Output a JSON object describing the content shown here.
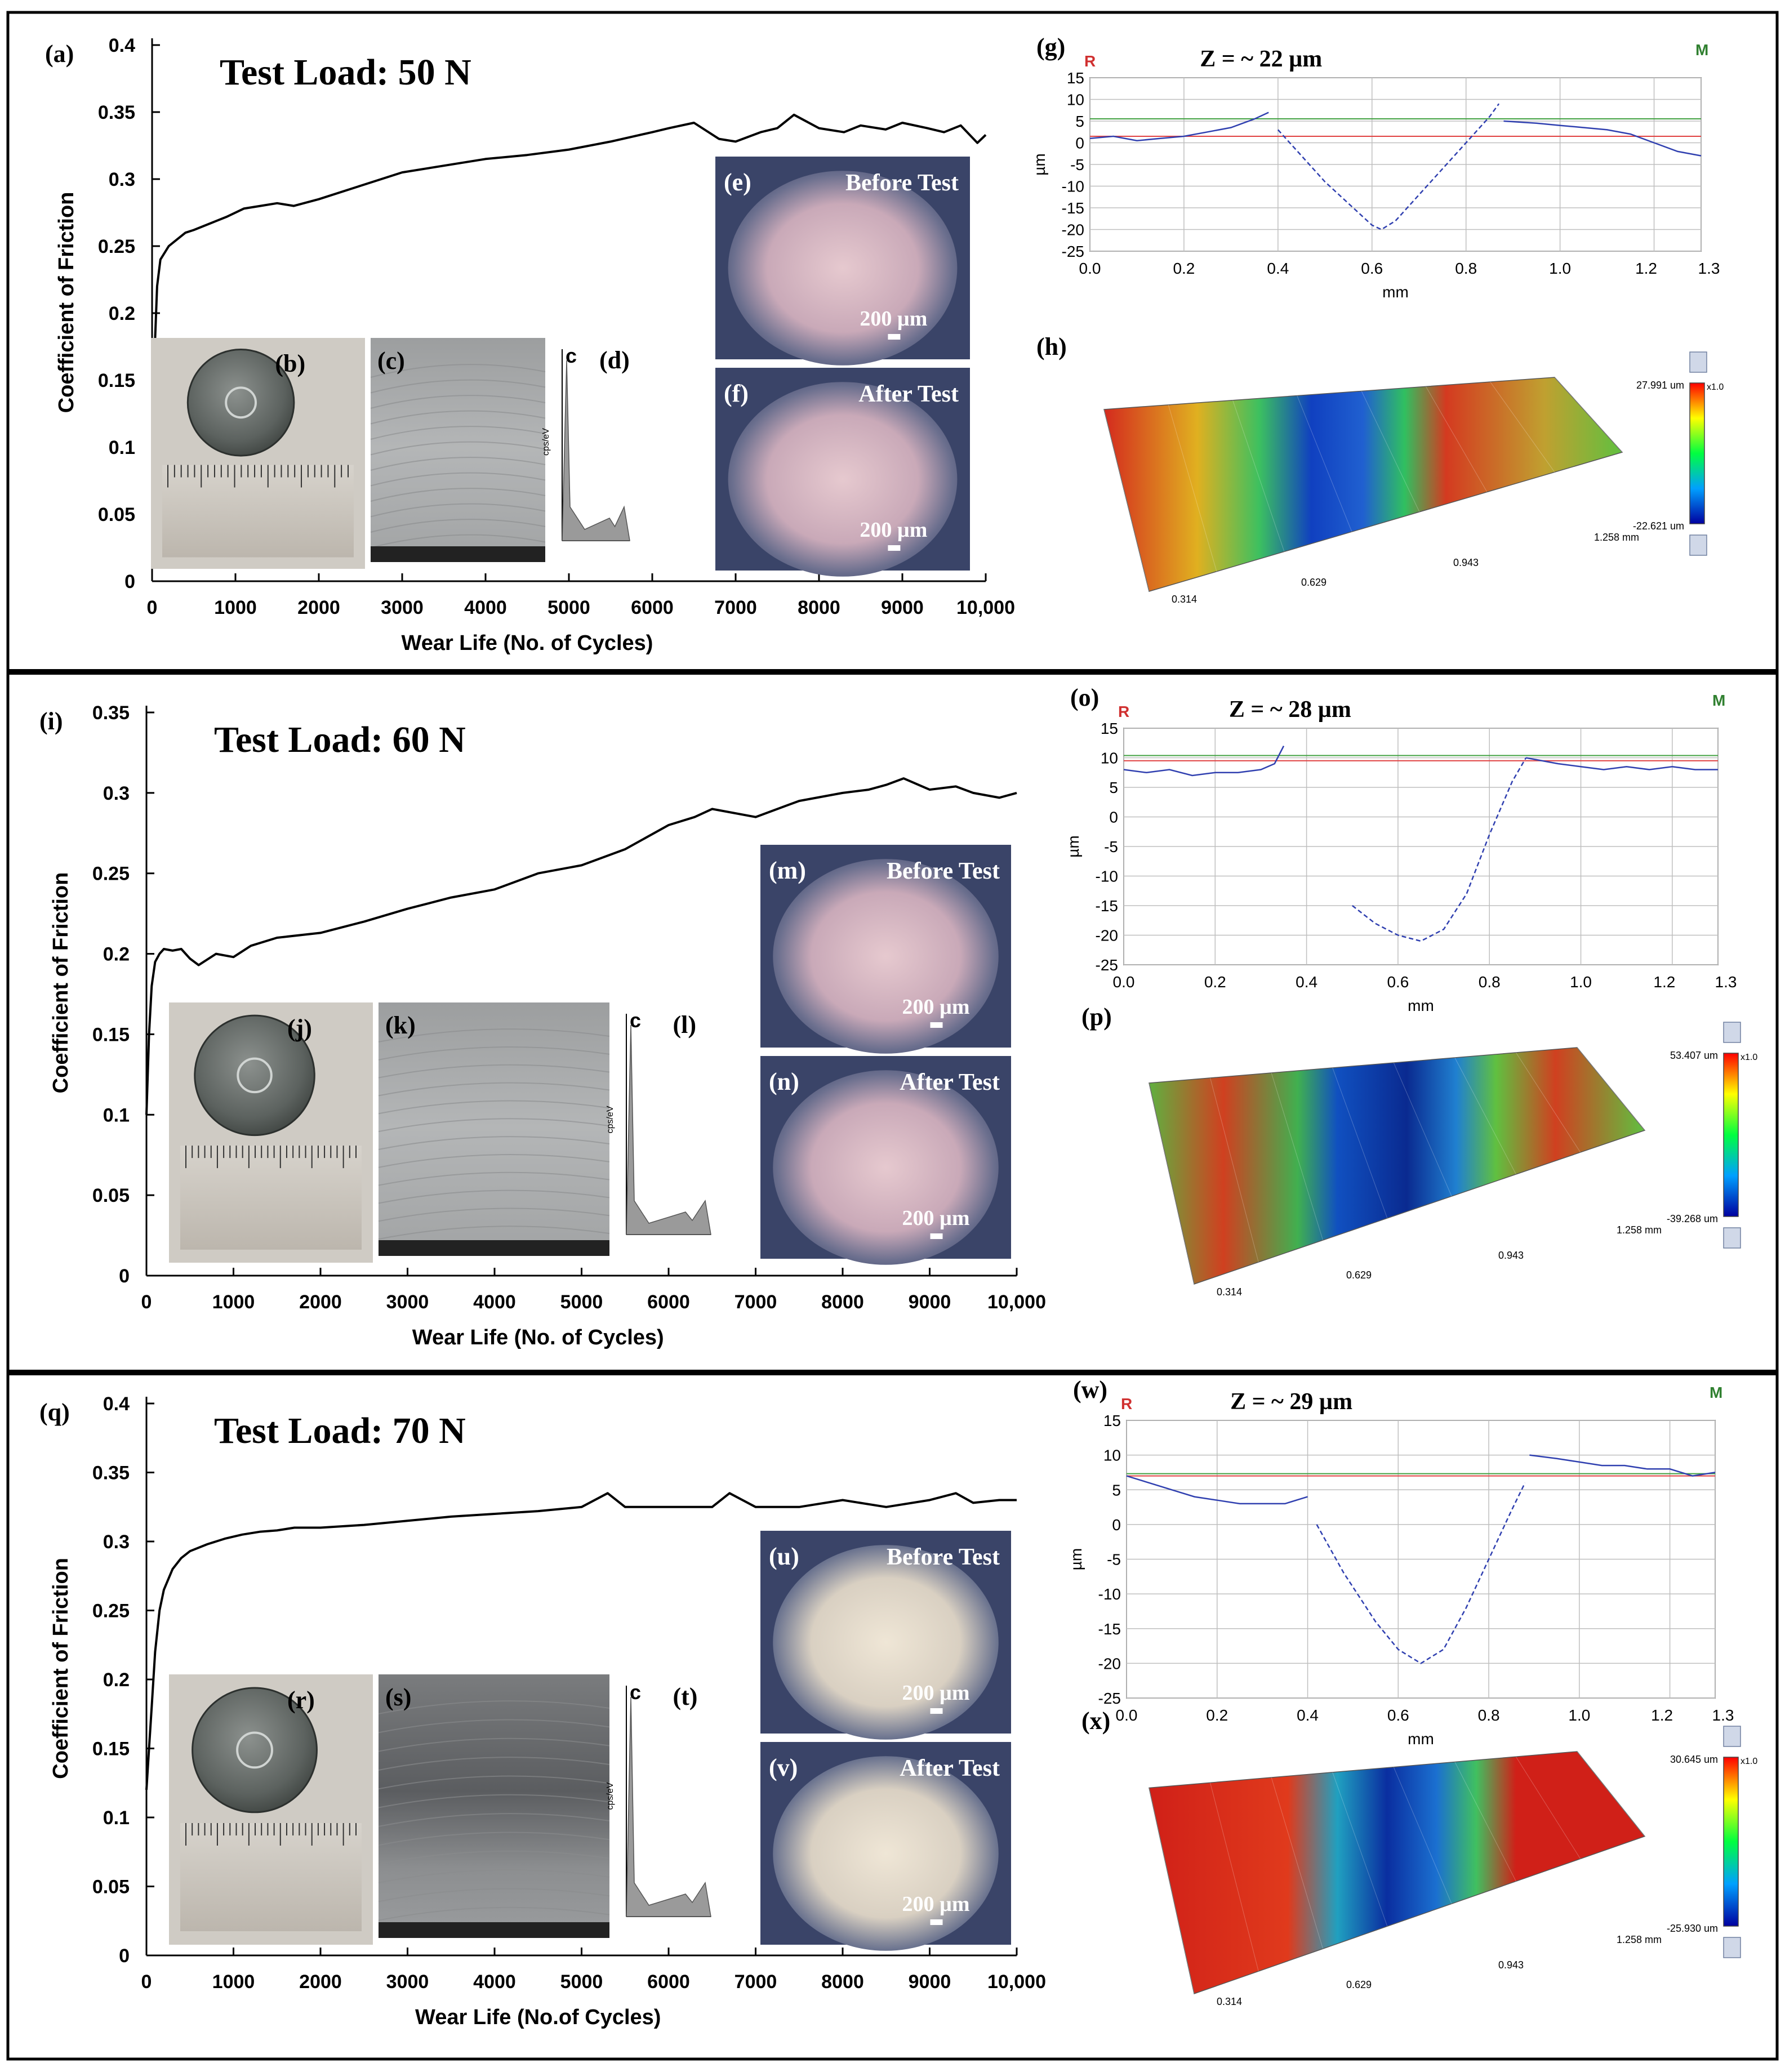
{
  "panels": [
    {
      "load_label": "Test Load: 50 N",
      "cof_label": "(a)",
      "disk_label": "(b)",
      "sem_label": "(c)",
      "eds_label": "(d)",
      "before_label": "(e)",
      "after_label": "(f)",
      "profile_label": "(g)",
      "surface_label": "(h)",
      "depth_label": "Z = ~ 22 µm",
      "surface_max": "27.991 um",
      "surface_min": "-22.621 um"
    },
    {
      "load_label": "Test Load: 60 N",
      "cof_label": "(i)",
      "disk_label": "(j)",
      "sem_label": "(k)",
      "eds_label": "(l)",
      "before_label": "(m)",
      "after_label": "(n)",
      "profile_label": "(o)",
      "surface_label": "(p)",
      "depth_label": "Z = ~ 28 µm",
      "surface_max": "53.407 um",
      "surface_min": "-39.268 um"
    },
    {
      "load_label": "Test Load: 70 N",
      "cof_label": "(q)",
      "disk_label": "(r)",
      "sem_label": "(s)",
      "eds_label": "(t)",
      "before_label": "(u)",
      "after_label": "(v)",
      "profile_label": "(w)",
      "surface_label": "(x)",
      "depth_label": "Z = ~ 29 µm",
      "surface_max": "30.645 um",
      "surface_min": "-25.930 um"
    }
  ],
  "common": {
    "before_text": "Before Test",
    "after_text": "After Test",
    "scale_text": "200 µm",
    "eds_c": "c",
    "eds_yaxis": "cps/eV",
    "profile_R": "R",
    "profile_M": "M",
    "profile_unit_y": "µm",
    "profile_unit_x": "mm",
    "surface_x1": "0.314",
    "surface_x2": "0.629",
    "surface_x3": "0.943",
    "surface_x4": "1.258 mm",
    "surface_zoom": "x1.0"
  },
  "chart_data": [
    {
      "type": "line",
      "title": "Test Load: 50 N",
      "xlabel": "Wear Life (No. of Cycles)",
      "ylabel": "Coefficient of Friction",
      "xlim": [
        0,
        10000
      ],
      "ylim": [
        0,
        0.4
      ],
      "xticks": [
        0,
        1000,
        2000,
        3000,
        4000,
        5000,
        6000,
        7000,
        8000,
        9000,
        10000
      ],
      "xtick_labels": [
        "0",
        "1000",
        "2000",
        "3000",
        "4000",
        "5000",
        "6000",
        "7000",
        "8000",
        "9000",
        "10,000"
      ],
      "yticks": [
        0,
        0.05,
        0.1,
        0.15,
        0.2,
        0.25,
        0.3,
        0.35,
        0.4
      ],
      "ytick_labels": [
        "0",
        "0.05",
        "0.1",
        "0.15",
        "0.2",
        "0.25",
        "0.3",
        "0.35",
        "0.4"
      ],
      "x": [
        0,
        30,
        60,
        100,
        150,
        200,
        300,
        400,
        500,
        700,
        900,
        1100,
        1300,
        1500,
        1700,
        2000,
        2500,
        3000,
        3500,
        4000,
        4500,
        5000,
        5500,
        6000,
        6200,
        6500,
        6800,
        7000,
        7300,
        7500,
        7700,
        8000,
        8300,
        8500,
        8800,
        9000,
        9300,
        9500,
        9700,
        9900,
        10000
      ],
      "y": [
        0.1,
        0.17,
        0.22,
        0.24,
        0.245,
        0.25,
        0.255,
        0.26,
        0.262,
        0.267,
        0.272,
        0.278,
        0.28,
        0.282,
        0.28,
        0.285,
        0.295,
        0.305,
        0.31,
        0.315,
        0.318,
        0.322,
        0.328,
        0.335,
        0.338,
        0.342,
        0.33,
        0.328,
        0.335,
        0.338,
        0.348,
        0.338,
        0.335,
        0.34,
        0.337,
        0.342,
        0.338,
        0.335,
        0.34,
        0.327,
        0.333
      ]
    },
    {
      "type": "line",
      "title": "Test Load: 60 N",
      "xlabel": "Wear Life (No. of Cycles)",
      "ylabel": "Coefficient of Friction",
      "xlim": [
        0,
        10000
      ],
      "ylim": [
        0,
        0.35
      ],
      "xticks": [
        0,
        1000,
        2000,
        3000,
        4000,
        5000,
        6000,
        7000,
        8000,
        9000,
        10000
      ],
      "xtick_labels": [
        "0",
        "1000",
        "2000",
        "3000",
        "4000",
        "5000",
        "6000",
        "7000",
        "8000",
        "9000",
        "10,000"
      ],
      "yticks": [
        0,
        0.05,
        0.1,
        0.15,
        0.2,
        0.25,
        0.3,
        0.35
      ],
      "ytick_labels": [
        "0",
        "0.05",
        "0.1",
        "0.15",
        "0.2",
        "0.25",
        "0.3",
        "0.35"
      ],
      "x": [
        0,
        30,
        60,
        100,
        150,
        200,
        300,
        400,
        500,
        600,
        800,
        1000,
        1200,
        1500,
        2000,
        2500,
        3000,
        3500,
        4000,
        4500,
        5000,
        5500,
        6000,
        6300,
        6500,
        7000,
        7500,
        8000,
        8300,
        8500,
        8700,
        9000,
        9300,
        9500,
        9800,
        10000
      ],
      "y": [
        0.1,
        0.15,
        0.18,
        0.195,
        0.2,
        0.203,
        0.202,
        0.203,
        0.197,
        0.193,
        0.2,
        0.198,
        0.205,
        0.21,
        0.213,
        0.22,
        0.228,
        0.235,
        0.24,
        0.25,
        0.255,
        0.265,
        0.28,
        0.285,
        0.29,
        0.285,
        0.295,
        0.3,
        0.302,
        0.305,
        0.309,
        0.302,
        0.304,
        0.3,
        0.297,
        0.3
      ]
    },
    {
      "type": "line",
      "title": "Test Load: 70 N",
      "xlabel": "Wear Life (No.of Cycles)",
      "ylabel": "Coefficient of Friction",
      "xlim": [
        0,
        10000
      ],
      "ylim": [
        0,
        0.4
      ],
      "xticks": [
        0,
        1000,
        2000,
        3000,
        4000,
        5000,
        6000,
        7000,
        8000,
        9000,
        10000
      ],
      "xtick_labels": [
        "0",
        "1000",
        "2000",
        "3000",
        "4000",
        "5000",
        "6000",
        "7000",
        "8000",
        "9000",
        "10,000"
      ],
      "yticks": [
        0,
        0.05,
        0.1,
        0.15,
        0.2,
        0.25,
        0.3,
        0.35,
        0.4
      ],
      "ytick_labels": [
        "0",
        "0.05",
        "0.1",
        "0.15",
        "0.2",
        "0.25",
        "0.3",
        "0.35",
        "0.4"
      ],
      "x": [
        0,
        30,
        60,
        100,
        150,
        200,
        300,
        400,
        500,
        700,
        900,
        1100,
        1300,
        1500,
        1700,
        2000,
        2500,
        3000,
        3500,
        4000,
        4500,
        5000,
        5300,
        5500,
        6000,
        6500,
        6700,
        7000,
        7500,
        8000,
        8500,
        9000,
        9300,
        9500,
        9800,
        10000
      ],
      "y": [
        0.12,
        0.15,
        0.18,
        0.22,
        0.25,
        0.265,
        0.28,
        0.288,
        0.293,
        0.298,
        0.302,
        0.305,
        0.307,
        0.308,
        0.31,
        0.31,
        0.312,
        0.315,
        0.318,
        0.32,
        0.322,
        0.325,
        0.335,
        0.325,
        0.325,
        0.325,
        0.335,
        0.325,
        0.325,
        0.33,
        0.325,
        0.33,
        0.335,
        0.328,
        0.33,
        0.33
      ]
    },
    {
      "type": "line",
      "title": "Z = ~ 22 µm",
      "xlabel": "mm",
      "ylabel": "µm",
      "xlim": [
        0,
        1.3
      ],
      "ylim": [
        -25,
        15
      ],
      "xticks": [
        0,
        0.2,
        0.4,
        0.6,
        0.8,
        1.0,
        1.2,
        1.3
      ],
      "xtick_labels": [
        "0.0",
        "0.2",
        "0.4",
        "0.6",
        "0.8",
        "1.0",
        "1.2",
        "1.3"
      ],
      "yticks": [
        -25,
        -20,
        -15,
        -10,
        -5,
        0,
        5,
        10,
        15
      ],
      "series": [
        {
          "name": "left",
          "x": [
            0,
            0.05,
            0.1,
            0.15,
            0.2,
            0.25,
            0.3,
            0.35,
            0.38
          ],
          "y": [
            1,
            1.5,
            0.5,
            1,
            1.5,
            2.5,
            3.5,
            5.5,
            7
          ]
        },
        {
          "name": "track",
          "x": [
            0.4,
            0.45,
            0.5,
            0.55,
            0.6,
            0.62,
            0.65,
            0.7,
            0.75,
            0.8,
            0.85,
            0.87
          ],
          "y": [
            3,
            -3,
            -9,
            -14,
            -19,
            -20,
            -18,
            -12,
            -6,
            0,
            6,
            9
          ]
        },
        {
          "name": "right",
          "x": [
            0.88,
            0.95,
            1.0,
            1.05,
            1.1,
            1.15,
            1.2,
            1.25,
            1.3
          ],
          "y": [
            5,
            4.5,
            4,
            3.5,
            3,
            2,
            0,
            -2,
            -3
          ]
        }
      ],
      "ref_lines": [
        1.5,
        5
      ]
    },
    {
      "type": "line",
      "title": "Z = ~ 28 µm",
      "xlabel": "mm",
      "ylabel": "µm",
      "xlim": [
        0,
        1.3
      ],
      "ylim": [
        -25,
        15
      ],
      "xticks": [
        0,
        0.2,
        0.4,
        0.6,
        0.8,
        1.0,
        1.2,
        1.3
      ],
      "xtick_labels": [
        "0.0",
        "0.2",
        "0.4",
        "0.6",
        "0.8",
        "1.0",
        "1.2",
        "1.3"
      ],
      "yticks": [
        -25,
        -20,
        -15,
        -10,
        -5,
        0,
        5,
        10,
        15
      ],
      "series": [
        {
          "name": "left",
          "x": [
            0,
            0.05,
            0.1,
            0.15,
            0.2,
            0.25,
            0.3,
            0.33,
            0.35
          ],
          "y": [
            8,
            7.5,
            8,
            7,
            7.5,
            7.5,
            8,
            9,
            12
          ]
        },
        {
          "name": "track",
          "x": [
            0.5,
            0.55,
            0.6,
            0.65,
            0.7,
            0.75,
            0.8,
            0.85,
            0.88
          ],
          "y": [
            -15,
            -18,
            -20,
            -21,
            -19,
            -13,
            -3,
            6,
            10
          ]
        },
        {
          "name": "right",
          "x": [
            0.88,
            0.95,
            1.0,
            1.05,
            1.1,
            1.15,
            1.2,
            1.25,
            1.3
          ],
          "y": [
            10,
            9,
            8.5,
            8,
            8.5,
            8,
            8.5,
            8,
            8
          ]
        }
      ],
      "ref_lines": [
        9.5,
        10
      ]
    },
    {
      "type": "line",
      "title": "Z = ~ 29 µm",
      "xlabel": "mm",
      "ylabel": "µm",
      "xlim": [
        0,
        1.3
      ],
      "ylim": [
        -25,
        15
      ],
      "xticks": [
        0,
        0.2,
        0.4,
        0.6,
        0.8,
        1.0,
        1.2,
        1.3
      ],
      "xtick_labels": [
        "0.0",
        "0.2",
        "0.4",
        "0.6",
        "0.8",
        "1.0",
        "1.2",
        "1.3"
      ],
      "yticks": [
        -25,
        -20,
        -15,
        -10,
        -5,
        0,
        5,
        10,
        15
      ],
      "series": [
        {
          "name": "left",
          "x": [
            0,
            0.05,
            0.1,
            0.15,
            0.2,
            0.25,
            0.3,
            0.35,
            0.4
          ],
          "y": [
            7,
            6,
            5,
            4,
            3.5,
            3,
            3,
            3,
            4
          ]
        },
        {
          "name": "track",
          "x": [
            0.42,
            0.48,
            0.55,
            0.6,
            0.65,
            0.7,
            0.75,
            0.8,
            0.85,
            0.88
          ],
          "y": [
            0,
            -7,
            -14,
            -18,
            -20,
            -18,
            -12,
            -5,
            2,
            6
          ]
        },
        {
          "name": "right",
          "x": [
            0.89,
            0.95,
            1.0,
            1.05,
            1.1,
            1.15,
            1.2,
            1.25,
            1.3
          ],
          "y": [
            10,
            9.5,
            9,
            8.5,
            8.5,
            8,
            8,
            7,
            7.5
          ]
        }
      ],
      "ref_lines": [
        7,
        7
      ]
    }
  ]
}
